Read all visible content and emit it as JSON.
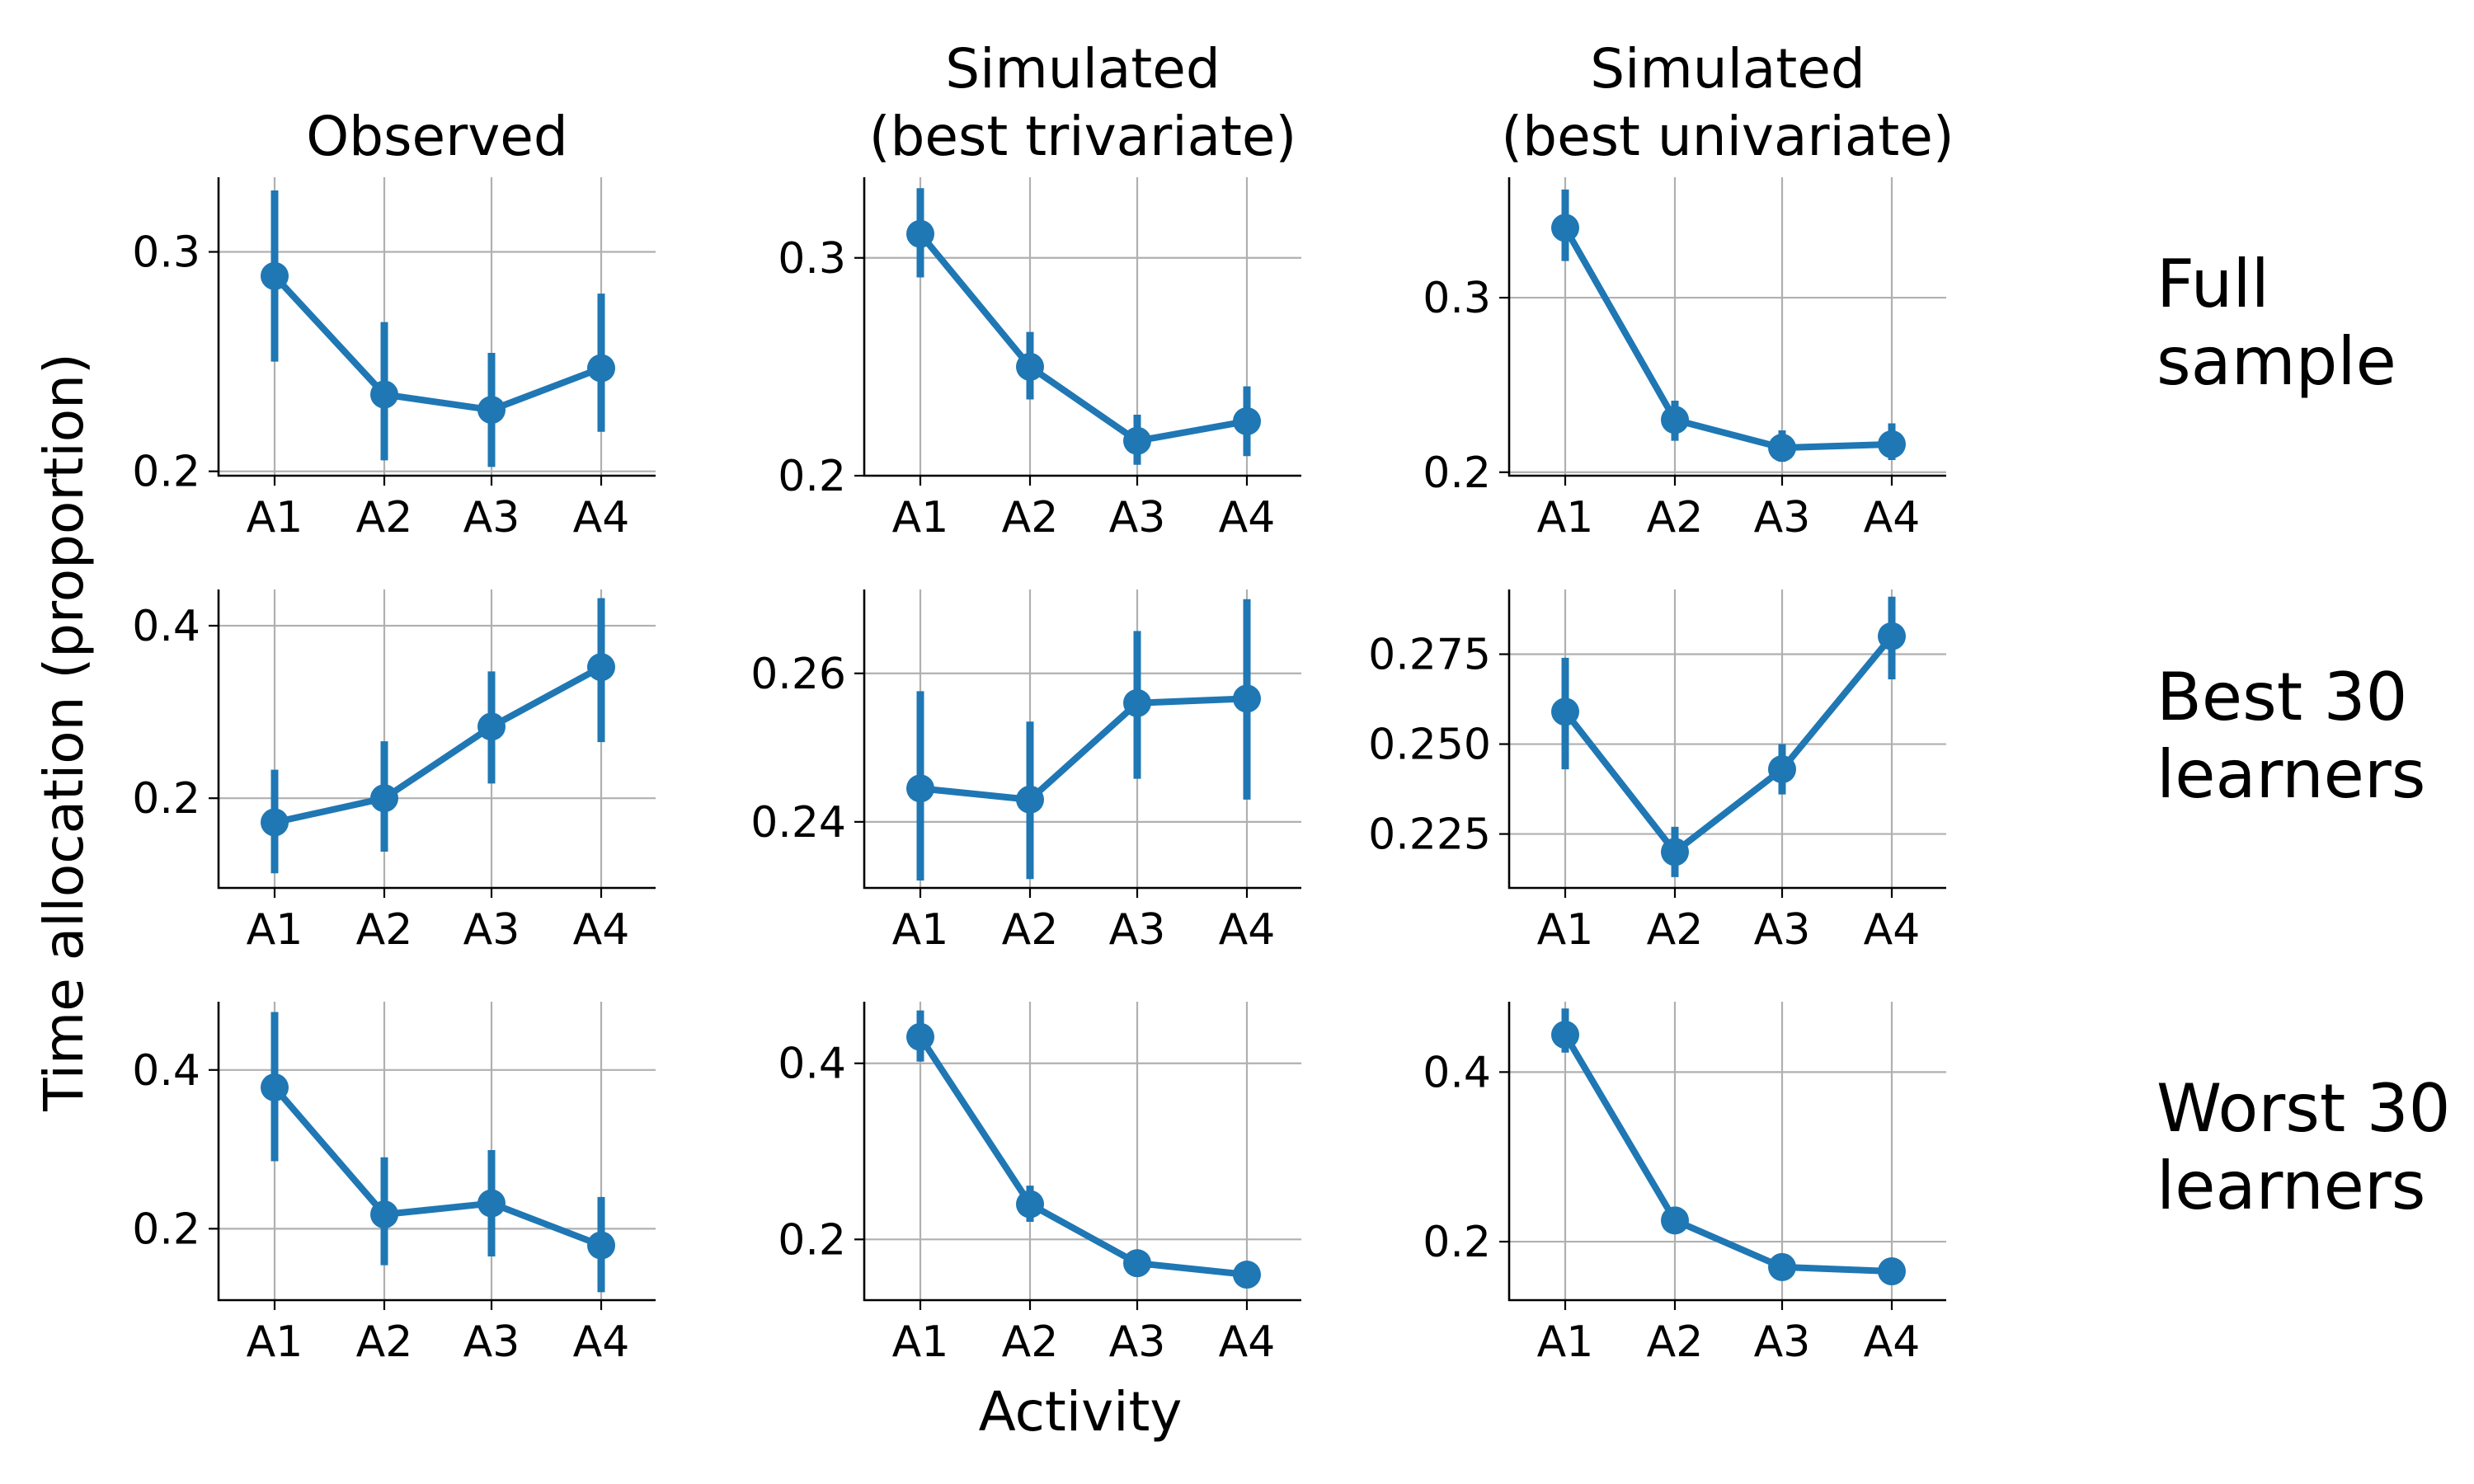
{
  "figure": {
    "ylabel": "Time allocation (proportion)",
    "xlabel": "Activity",
    "column_titles": [
      [
        "Observed"
      ],
      [
        "Simulated",
        "(best trivariate)"
      ],
      [
        "Simulated",
        "(best univariate)"
      ]
    ],
    "row_labels": [
      [
        "Full",
        "sample"
      ],
      [
        "Best 30",
        "learners"
      ],
      [
        "Worst 30",
        "learners"
      ]
    ]
  },
  "colors": {
    "series": "#1f77b4",
    "grid": "#b0b0b0",
    "axis": "#000000"
  },
  "chart_data": [
    {
      "type": "line",
      "row": 0,
      "col": 0,
      "categories": [
        "A1",
        "A2",
        "A3",
        "A4"
      ],
      "values": [
        0.289,
        0.235,
        0.228,
        0.247
      ],
      "err_low": [
        0.25,
        0.205,
        0.202,
        0.218
      ],
      "err_high": [
        0.328,
        0.268,
        0.254,
        0.281
      ],
      "ylim": [
        0.198,
        0.334
      ],
      "yticks": [
        0.2,
        0.3
      ],
      "ytick_labels": [
        "0.2",
        "0.3"
      ]
    },
    {
      "type": "line",
      "row": 0,
      "col": 1,
      "categories": [
        "A1",
        "A2",
        "A3",
        "A4"
      ],
      "values": [
        0.311,
        0.25,
        0.216,
        0.225
      ],
      "err_low": [
        0.291,
        0.235,
        0.205,
        0.209
      ],
      "err_high": [
        0.332,
        0.266,
        0.228,
        0.241
      ],
      "ylim": [
        0.2,
        0.337
      ],
      "yticks": [
        0.2,
        0.3
      ],
      "ytick_labels": [
        "0.2",
        "0.3"
      ]
    },
    {
      "type": "line",
      "row": 0,
      "col": 2,
      "categories": [
        "A1",
        "A2",
        "A3",
        "A4"
      ],
      "values": [
        0.34,
        0.23,
        0.214,
        0.216
      ],
      "err_low": [
        0.321,
        0.218,
        0.206,
        0.207
      ],
      "err_high": [
        0.362,
        0.241,
        0.224,
        0.228
      ],
      "ylim": [
        0.198,
        0.369
      ],
      "yticks": [
        0.2,
        0.3
      ],
      "ytick_labels": [
        "0.2",
        "0.3"
      ]
    },
    {
      "type": "line",
      "row": 1,
      "col": 0,
      "categories": [
        "A1",
        "A2",
        "A3",
        "A4"
      ],
      "values": [
        0.172,
        0.2,
        0.283,
        0.352
      ],
      "err_low": [
        0.113,
        0.138,
        0.217,
        0.265
      ],
      "err_high": [
        0.233,
        0.266,
        0.347,
        0.432
      ],
      "ylim": [
        0.096,
        0.442
      ],
      "yticks": [
        0.2,
        0.4
      ],
      "ytick_labels": [
        "0.2",
        "0.4"
      ]
    },
    {
      "type": "line",
      "row": 1,
      "col": 1,
      "categories": [
        "A1",
        "A2",
        "A3",
        "A4"
      ],
      "values": [
        0.2445,
        0.243,
        0.256,
        0.2566
      ],
      "err_low": [
        0.2321,
        0.2323,
        0.2458,
        0.243
      ],
      "err_high": [
        0.2576,
        0.2535,
        0.2657,
        0.27
      ],
      "ylim": [
        0.2311,
        0.2713
      ],
      "yticks": [
        0.24,
        0.26
      ],
      "ytick_labels": [
        "0.24",
        "0.26"
      ]
    },
    {
      "type": "line",
      "row": 1,
      "col": 2,
      "categories": [
        "A1",
        "A2",
        "A3",
        "A4"
      ],
      "values": [
        0.259,
        0.22,
        0.243,
        0.28
      ],
      "err_low": [
        0.243,
        0.213,
        0.236,
        0.268
      ],
      "err_high": [
        0.274,
        0.227,
        0.25,
        0.291
      ],
      "ylim": [
        0.21,
        0.293
      ],
      "yticks": [
        0.225,
        0.25,
        0.275
      ],
      "ytick_labels": [
        "0.225",
        "0.250",
        "0.275"
      ]
    },
    {
      "type": "line",
      "row": 2,
      "col": 0,
      "categories": [
        "A1",
        "A2",
        "A3",
        "A4"
      ],
      "values": [
        0.378,
        0.218,
        0.232,
        0.179
      ],
      "err_low": [
        0.285,
        0.154,
        0.165,
        0.12
      ],
      "err_high": [
        0.473,
        0.29,
        0.299,
        0.24
      ],
      "ylim": [
        0.11,
        0.486
      ],
      "yticks": [
        0.2,
        0.4
      ],
      "ytick_labels": [
        "0.2",
        "0.4"
      ]
    },
    {
      "type": "line",
      "row": 2,
      "col": 1,
      "categories": [
        "A1",
        "A2",
        "A3",
        "A4"
      ],
      "values": [
        0.43,
        0.24,
        0.173,
        0.16
      ],
      "err_low": [
        0.402,
        0.22,
        0.165,
        0.15
      ],
      "err_high": [
        0.46,
        0.261,
        0.182,
        0.17
      ],
      "ylim": [
        0.131,
        0.47
      ],
      "yticks": [
        0.2,
        0.4
      ],
      "ytick_labels": [
        "0.2",
        "0.4"
      ]
    },
    {
      "type": "line",
      "row": 2,
      "col": 2,
      "categories": [
        "A1",
        "A2",
        "A3",
        "A4"
      ],
      "values": [
        0.444,
        0.225,
        0.17,
        0.165
      ],
      "err_low": [
        0.423,
        0.212,
        0.164,
        0.158
      ],
      "err_high": [
        0.475,
        0.238,
        0.177,
        0.172
      ],
      "ylim": [
        0.131,
        0.483
      ],
      "yticks": [
        0.2,
        0.4
      ],
      "ytick_labels": [
        "0.2",
        "0.4"
      ]
    }
  ]
}
